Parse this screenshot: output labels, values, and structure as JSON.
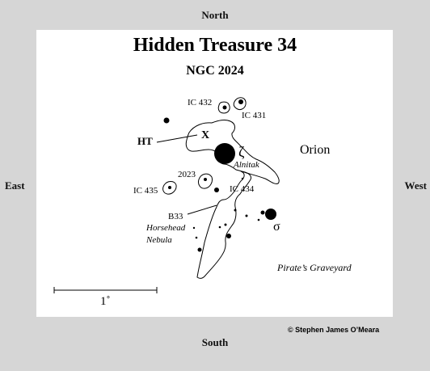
{
  "directions": {
    "north": "North",
    "south": "South",
    "east": "East",
    "west": "West"
  },
  "title": "Hidden Treasure 34",
  "subtitle": "NGC 2024",
  "labels": {
    "ic432": "IC 432",
    "ic431": "IC 431",
    "x": "X",
    "ht": "HT",
    "zeta": "ζ",
    "alnitak": "Alnitak",
    "orion": "Orion",
    "n2023": "2023",
    "ic435": "IC 435",
    "ic434": "IC 434",
    "b33": "B33",
    "sigma": "σ",
    "horsehead_1": "Horsehead",
    "horsehead_2": "Nebula",
    "graveyard": "Pirate’s Graveyard"
  },
  "scale_bar": {
    "label": "1˚"
  },
  "copyright": "© Stephen James O’Meara",
  "colors": {
    "background": "#d6d6d6",
    "panel": "#ffffff",
    "ink": "#000000"
  }
}
